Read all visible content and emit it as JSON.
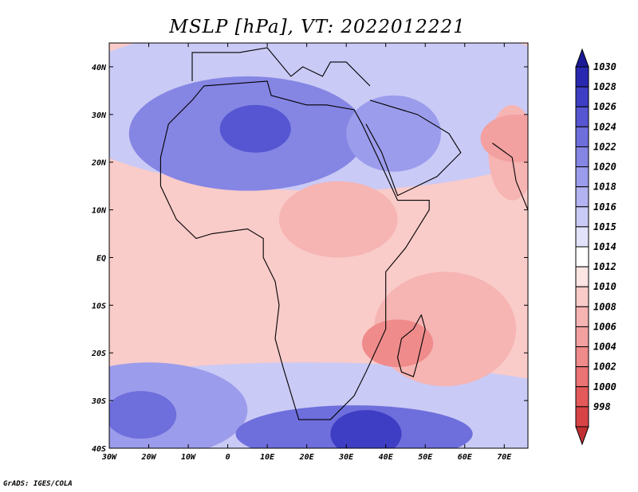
{
  "chart_data": {
    "type": "heatmap",
    "title": "MSLP [hPa], VT: 2022012221",
    "variable": "MSLP",
    "units": "hPa",
    "valid_time": "2022012221",
    "x_axis": {
      "range": [
        -30,
        76
      ],
      "ticks": [
        {
          "value": -30,
          "label": "30W"
        },
        {
          "value": -20,
          "label": "20W"
        },
        {
          "value": -10,
          "label": "10W"
        },
        {
          "value": 0,
          "label": "0"
        },
        {
          "value": 10,
          "label": "10E"
        },
        {
          "value": 20,
          "label": "20E"
        },
        {
          "value": 30,
          "label": "30E"
        },
        {
          "value": 40,
          "label": "40E"
        },
        {
          "value": 50,
          "label": "50E"
        },
        {
          "value": 60,
          "label": "60E"
        },
        {
          "value": 70,
          "label": "70E"
        }
      ]
    },
    "y_axis": {
      "range": [
        -40,
        45
      ],
      "ticks": [
        {
          "value": 40,
          "label": "40N"
        },
        {
          "value": 30,
          "label": "30N"
        },
        {
          "value": 20,
          "label": "20N"
        },
        {
          "value": 10,
          "label": "10N"
        },
        {
          "value": 0,
          "label": "EQ"
        },
        {
          "value": -10,
          "label": "10S"
        },
        {
          "value": -20,
          "label": "20S"
        },
        {
          "value": -30,
          "label": "30S"
        },
        {
          "value": -40,
          "label": "40S"
        }
      ]
    },
    "colorbar": {
      "levels": [
        998,
        1000,
        1002,
        1004,
        1006,
        1008,
        1010,
        1012,
        1014,
        1015,
        1016,
        1018,
        1020,
        1022,
        1024,
        1026,
        1028,
        1030
      ],
      "labels": [
        "998",
        "1000",
        "1002",
        "1004",
        "1006",
        "1008",
        "1010",
        "1012",
        "1014",
        "1015",
        "1016",
        "1018",
        "1020",
        "1022",
        "1024",
        "1026",
        "1028",
        "1030"
      ],
      "colors": [
        "#c03033",
        "#d84446",
        "#e45a5b",
        "#eb7374",
        "#ef8b8b",
        "#f3a0a0",
        "#f6b4b3",
        "#f9cbc9",
        "#fde5e4",
        "#ffffff",
        "#e2e2fa",
        "#cacaf6",
        "#b3b3f1",
        "#9c9cec",
        "#8585e4",
        "#6e6edc",
        "#5656d2",
        "#3e3ec4",
        "#2828b0",
        "#1a1a96"
      ]
    },
    "regions": [
      {
        "name": "saharan-high",
        "lon": 7,
        "lat": 27,
        "value": 1028
      },
      {
        "name": "southern-ocean-high",
        "lon": 35,
        "lat": -37,
        "value": 1030
      },
      {
        "name": "south-atlantic-high",
        "lon": -22,
        "lat": -33,
        "value": 1026
      },
      {
        "name": "mozambique-channel-low",
        "lon": 43,
        "lat": -18,
        "value": 1006
      },
      {
        "name": "equatorial-trough",
        "lon": 0,
        "lat": 2,
        "value": 1012
      },
      {
        "name": "sudan-low",
        "lon": 30,
        "lat": 10,
        "value": 1010
      },
      {
        "name": "india-low",
        "lon": 73,
        "lat": 25,
        "value": 1008
      }
    ]
  },
  "footer": {
    "credit": "GrADS: IGES/COLA"
  }
}
